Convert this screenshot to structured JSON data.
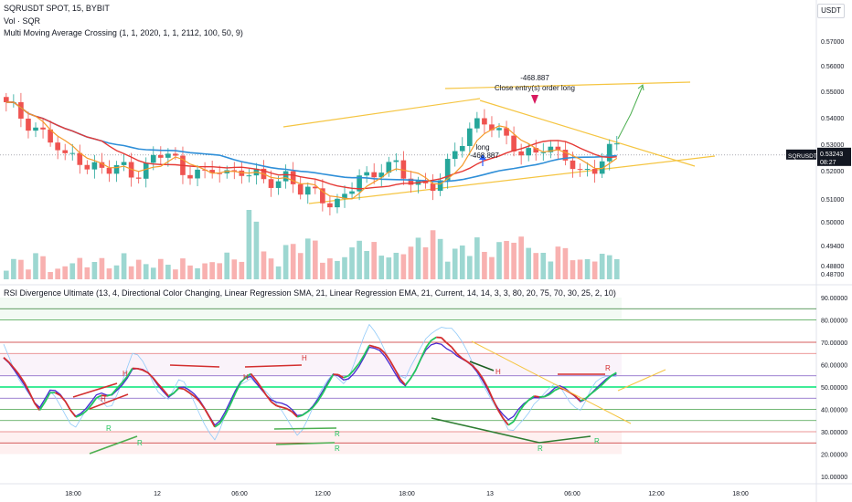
{
  "header": {
    "symbol_line": "SQRUSDT SPOT, 15, BYBIT",
    "indicator_vol": "Vol · SQR",
    "indicator_ma": "Multi Moving Average Crossing (1, 1, 2020, 1, 1, 2112, 100, 50, 9)",
    "indicator_rsi": "RSI Divergence Ultimate (13, 4, Directional Color Changing, Linear Regression SMA, 21, Linear Regression EMA, 21,  Current, 14, 14, 3, 3, 80, 20, 75, 70, 30, 25, 2, 10)"
  },
  "currency_button": "USDT",
  "price_axis": {
    "ticks": [
      "0.57000",
      "0.56000",
      "0.55000",
      "0.54000",
      "0.53000",
      "0.52000",
      "0.51000",
      "0.50000",
      "0.49400",
      "0.48800",
      "0.48700"
    ],
    "current_symbol": "SQRUSDT",
    "current_price": "0.53243",
    "countdown": "08:27"
  },
  "rsi_axis": {
    "ticks": [
      "90.00000",
      "80.00000",
      "70.00000",
      "60.00000",
      "50.00000",
      "40.00000",
      "30.00000",
      "20.00000",
      "10.00000"
    ]
  },
  "time_axis": {
    "ticks": [
      "18:00",
      "12",
      "06:00",
      "12:00",
      "18:00",
      "13",
      "06:00",
      "12:00",
      "18:00"
    ]
  },
  "annotations": {
    "close_value": "-468.887",
    "close_text": "Close entry(s) order long",
    "long_text": "long",
    "long_value": "-468.887"
  },
  "rsi_labels": {
    "H": "H",
    "R": "R"
  },
  "colors": {
    "up": "#26a69a",
    "down": "#ef5350",
    "ema_orange": "#f59b2b",
    "ma_red": "#e53935",
    "ma_blue": "#2f8fd8",
    "channel": "#f5c542",
    "rsi_purple": "#4a2bd1",
    "rsi_green": "#22c55e",
    "rsi_red": "#d32f2f"
  },
  "chart_data": {
    "type": "candlestick",
    "title": "SQRUSDT SPOT, 15, BYBIT",
    "ylim_price": [
      0.4855,
      0.5775
    ],
    "ylim_rsi": [
      10,
      90
    ],
    "approx_close_path": [
      0.551,
      0.548,
      0.545,
      0.541,
      0.537,
      0.53,
      0.534,
      0.528,
      0.527,
      0.526,
      0.528,
      0.526,
      0.528,
      0.532,
      0.533,
      0.526,
      0.528,
      0.523,
      0.527,
      0.525,
      0.528,
      0.525,
      0.521,
      0.522,
      0.526,
      0.52,
      0.517,
      0.515,
      0.514,
      0.519,
      0.524,
      0.521,
      0.529,
      0.531,
      0.524,
      0.519,
      0.52,
      0.525,
      0.533,
      0.538,
      0.543,
      0.547,
      0.542,
      0.536,
      0.531,
      0.533,
      0.539,
      0.532,
      0.529,
      0.524,
      0.528,
      0.534,
      0.535
    ],
    "current_price": 0.53243,
    "volume_scale_note": "relative bar heights only",
    "approx_volume": [
      3,
      4,
      3,
      5,
      2,
      3,
      4,
      3,
      4,
      3,
      5,
      4,
      3,
      4,
      3,
      4,
      3,
      3,
      4,
      5,
      4,
      16,
      6,
      4,
      7,
      9,
      8,
      5,
      4,
      6,
      9,
      7,
      6,
      5,
      7,
      8,
      10,
      8,
      6,
      7,
      8,
      6,
      7,
      9,
      8,
      6,
      5,
      7,
      6,
      4,
      6,
      5,
      6
    ],
    "rsi_series": [
      62,
      55,
      50,
      42,
      48,
      44,
      38,
      42,
      46,
      44,
      52,
      60,
      56,
      50,
      47,
      52,
      46,
      40,
      34,
      42,
      50,
      54,
      50,
      44,
      40,
      36,
      42,
      48,
      54,
      52,
      60,
      68,
      64,
      58,
      52,
      58,
      66,
      70,
      68,
      62,
      56,
      50,
      42,
      34,
      40,
      46,
      48,
      50,
      46,
      44,
      50,
      52,
      54
    ],
    "rsi_levels": [
      80,
      75,
      70,
      50,
      30,
      25,
      20
    ]
  }
}
